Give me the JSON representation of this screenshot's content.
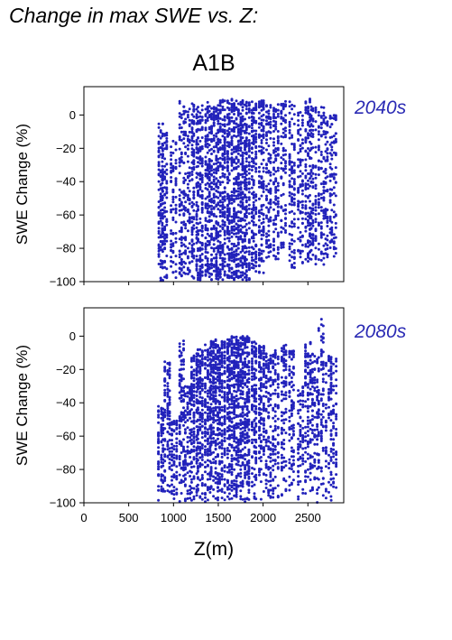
{
  "page": {
    "title": "Change in max SWE vs. Z:",
    "scenario": "A1B"
  },
  "colors": {
    "points": "#2222bb",
    "period_label": "#2a2ab4",
    "axis": "#000000"
  },
  "chart_data": [
    {
      "type": "scatter",
      "period": "2040s",
      "xlabel": "",
      "ylabel": "SWE Change (%)",
      "xlim": [
        0,
        2900
      ],
      "ylim": [
        -100,
        17
      ],
      "xticks": [
        0,
        500,
        1000,
        1500,
        2000,
        2500
      ],
      "yticks": [
        0,
        -20,
        -40,
        -60,
        -80,
        -100
      ],
      "show_x_tick_labels": false,
      "grid": false,
      "elevation_bands": [
        {
          "z": 860,
          "y_top": -5,
          "y_bottom": -100,
          "count": 14
        },
        {
          "z": 900,
          "y_top": -10,
          "y_bottom": -100,
          "count": 12
        },
        {
          "z": 1000,
          "y_top": -15,
          "y_bottom": -98,
          "count": 9
        },
        {
          "z": 1090,
          "y_top": 9,
          "y_bottom": -98,
          "count": 12
        },
        {
          "z": 1160,
          "y_top": 6,
          "y_bottom": -96,
          "count": 10
        },
        {
          "z": 1230,
          "y_top": 7,
          "y_bottom": -99,
          "count": 16
        },
        {
          "z": 1300,
          "y_top": 8,
          "y_bottom": -99,
          "count": 18
        },
        {
          "z": 1380,
          "y_top": 8,
          "y_bottom": -98,
          "count": 18
        },
        {
          "z": 1450,
          "y_top": 8,
          "y_bottom": -99,
          "count": 20
        },
        {
          "z": 1520,
          "y_top": 9,
          "y_bottom": -99,
          "count": 20
        },
        {
          "z": 1600,
          "y_top": 9,
          "y_bottom": -98,
          "count": 22
        },
        {
          "z": 1680,
          "y_top": 10,
          "y_bottom": -99,
          "count": 22
        },
        {
          "z": 1750,
          "y_top": 9,
          "y_bottom": -99,
          "count": 22
        },
        {
          "z": 1820,
          "y_top": 8,
          "y_bottom": -99,
          "count": 20
        },
        {
          "z": 1900,
          "y_top": 8,
          "y_bottom": -95,
          "count": 16
        },
        {
          "z": 1980,
          "y_top": 9,
          "y_bottom": -95,
          "count": 16
        },
        {
          "z": 2060,
          "y_top": 8,
          "y_bottom": -88,
          "count": 12
        },
        {
          "z": 2140,
          "y_top": 7,
          "y_bottom": -88,
          "count": 12
        },
        {
          "z": 2230,
          "y_top": 9,
          "y_bottom": -80,
          "count": 10
        },
        {
          "z": 2320,
          "y_top": 8,
          "y_bottom": -92,
          "count": 12
        },
        {
          "z": 2420,
          "y_top": 2,
          "y_bottom": -90,
          "count": 10
        },
        {
          "z": 2500,
          "y_top": 10,
          "y_bottom": -88,
          "count": 14
        },
        {
          "z": 2560,
          "y_top": 8,
          "y_bottom": -90,
          "count": 12
        },
        {
          "z": 2650,
          "y_top": 5,
          "y_bottom": -90,
          "count": 10
        },
        {
          "z": 2720,
          "y_top": 2,
          "y_bottom": -88,
          "count": 9
        },
        {
          "z": 2790,
          "y_top": 0,
          "y_bottom": -85,
          "count": 8
        }
      ]
    },
    {
      "type": "scatter",
      "period": "2080s",
      "xlabel": "Z(m)",
      "ylabel": "SWE Change (%)",
      "xlim": [
        0,
        2900
      ],
      "ylim": [
        -100,
        17
      ],
      "xticks": [
        0,
        500,
        1000,
        1500,
        2000,
        2500
      ],
      "xticklabels": [
        "0",
        "500",
        "1000",
        "1500",
        "2000",
        "2500"
      ],
      "yticks": [
        0,
        -20,
        -40,
        -60,
        -80,
        -100
      ],
      "show_x_tick_labels": true,
      "grid": false,
      "elevation_bands": [
        {
          "z": 860,
          "y_top": -42,
          "y_bottom": -100,
          "count": 10
        },
        {
          "z": 930,
          "y_top": -15,
          "y_bottom": -100,
          "count": 12
        },
        {
          "z": 1010,
          "y_top": -50,
          "y_bottom": -100,
          "count": 8
        },
        {
          "z": 1090,
          "y_top": -1,
          "y_bottom": -100,
          "count": 12
        },
        {
          "z": 1160,
          "y_top": -30,
          "y_bottom": -100,
          "count": 10
        },
        {
          "z": 1230,
          "y_top": -10,
          "y_bottom": -100,
          "count": 16
        },
        {
          "z": 1300,
          "y_top": -8,
          "y_bottom": -100,
          "count": 18
        },
        {
          "z": 1380,
          "y_top": -5,
          "y_bottom": -100,
          "count": 18
        },
        {
          "z": 1450,
          "y_top": -2,
          "y_bottom": -100,
          "count": 20
        },
        {
          "z": 1520,
          "y_top": -3,
          "y_bottom": -100,
          "count": 20
        },
        {
          "z": 1600,
          "y_top": -2,
          "y_bottom": -100,
          "count": 22
        },
        {
          "z": 1680,
          "y_top": 0,
          "y_bottom": -100,
          "count": 22
        },
        {
          "z": 1750,
          "y_top": 0,
          "y_bottom": -100,
          "count": 22
        },
        {
          "z": 1820,
          "y_top": 0,
          "y_bottom": -100,
          "count": 20
        },
        {
          "z": 1900,
          "y_top": -3,
          "y_bottom": -100,
          "count": 16
        },
        {
          "z": 1980,
          "y_top": -5,
          "y_bottom": -100,
          "count": 16
        },
        {
          "z": 2060,
          "y_top": -10,
          "y_bottom": -100,
          "count": 12
        },
        {
          "z": 2140,
          "y_top": -8,
          "y_bottom": -100,
          "count": 12
        },
        {
          "z": 2230,
          "y_top": -5,
          "y_bottom": -100,
          "count": 10
        },
        {
          "z": 2320,
          "y_top": -8,
          "y_bottom": -100,
          "count": 10
        },
        {
          "z": 2420,
          "y_top": -30,
          "y_bottom": -100,
          "count": 8
        },
        {
          "z": 2500,
          "y_top": -3,
          "y_bottom": -100,
          "count": 12
        },
        {
          "z": 2580,
          "y_top": -10,
          "y_bottom": -100,
          "count": 10
        },
        {
          "z": 2650,
          "y_top": 11,
          "y_bottom": -100,
          "count": 10
        },
        {
          "z": 2730,
          "y_top": -10,
          "y_bottom": -100,
          "count": 8
        },
        {
          "z": 2790,
          "y_top": -12,
          "y_bottom": -100,
          "count": 8
        }
      ]
    }
  ]
}
